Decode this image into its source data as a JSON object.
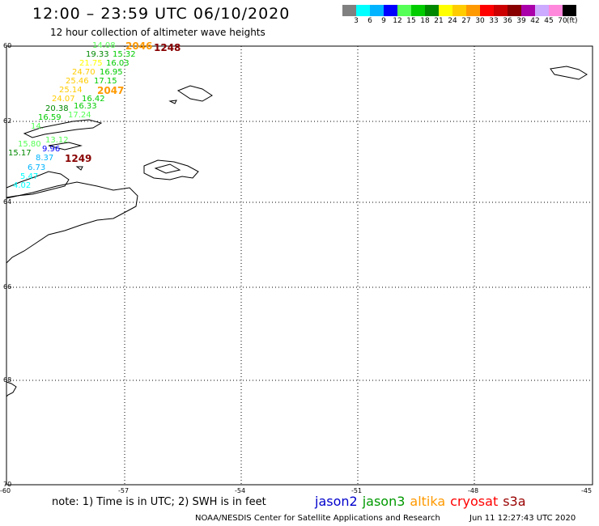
{
  "title": "12:00 – 23:59 UTC 06/10/2020",
  "subtitle": "12 hour collection of altimeter wave heights",
  "color_scale": {
    "colors": [
      "#808080",
      "#00ffff",
      "#00b4ff",
      "#0000ff",
      "#55ff55",
      "#00cc00",
      "#008800",
      "#ffff00",
      "#ffcc00",
      "#ff9900",
      "#ff0000",
      "#cc0000",
      "#880000",
      "#aa00aa",
      "#ccaaff",
      "#ff88dd",
      "#000000"
    ],
    "labels": [
      "3",
      "6",
      "9",
      "12",
      "15",
      "18",
      "21",
      "24",
      "27",
      "30",
      "33",
      "36",
      "39",
      "42",
      "45",
      "70"
    ],
    "unit": "(ft)"
  },
  "lat_labels": [
    "60",
    "62",
    "64",
    "66",
    "68",
    "70"
  ],
  "lon_labels": [
    "-60",
    "-57",
    "-54",
    "-51",
    "-48",
    "-45"
  ],
  "note": "note: 1) Time is in UTC; 2) SWH is in feet",
  "legend": [
    {
      "label": "jason2",
      "color": "#0000cc"
    },
    {
      "label": "jason3",
      "color": "#009900"
    },
    {
      "label": "altika",
      "color": "#ff9900"
    },
    {
      "label": "cryosat",
      "color": "#ff0000"
    },
    {
      "label": "s3a",
      "color": "#990000"
    }
  ],
  "credit": "NOAA/NESDIS Center for Satellite Applications and Research",
  "credit_time": "Jun 11 12:27:43 UTC 2020",
  "pass_labels": [
    {
      "text": "2046",
      "color": "#ff9900"
    },
    {
      "text": "1248",
      "color": "#880000"
    },
    {
      "text": "2047",
      "color": "#ff9900"
    },
    {
      "text": "1249",
      "color": "#880000"
    }
  ],
  "swh_values": [
    {
      "text": "14.08",
      "color": "#55ff55"
    },
    {
      "text": "19.33",
      "color": "#008800"
    },
    {
      "text": "15.32",
      "color": "#00cc00"
    },
    {
      "text": "21.75",
      "color": "#ffff00"
    },
    {
      "text": "16.03",
      "color": "#00cc00"
    },
    {
      "text": "24.70",
      "color": "#ffcc00"
    },
    {
      "text": "16.95",
      "color": "#00cc00"
    },
    {
      "text": "25.46",
      "color": "#ffcc00"
    },
    {
      "text": "17.15",
      "color": "#00cc00"
    },
    {
      "text": "25.14",
      "color": "#ffcc00"
    },
    {
      "text": "24.07",
      "color": "#ffcc00"
    },
    {
      "text": "16.42",
      "color": "#00cc00"
    },
    {
      "text": "20.38",
      "color": "#008800"
    },
    {
      "text": "16.33",
      "color": "#00cc00"
    },
    {
      "text": "16.59",
      "color": "#00cc00"
    },
    {
      "text": "17.24",
      "color": "#55ff55"
    },
    {
      "text": "14.",
      "color": "#55ff55"
    },
    {
      "text": "15.80",
      "color": "#55ff55"
    },
    {
      "text": "13.12",
      "color": "#55ff55"
    },
    {
      "text": "15.17",
      "color": "#008800"
    },
    {
      "text": "9.96",
      "color": "#0000ff"
    },
    {
      "text": "8.37",
      "color": "#00b4ff"
    },
    {
      "text": "6.73",
      "color": "#00b4ff"
    },
    {
      "text": "5.47",
      "color": "#00ffff"
    },
    {
      "text": "4.02",
      "color": "#00ffff"
    }
  ]
}
